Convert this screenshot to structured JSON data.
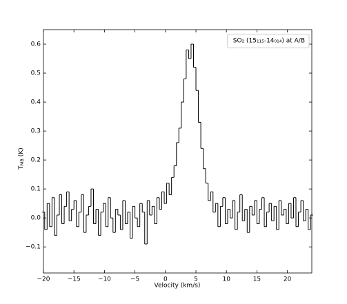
{
  "chart_data": {
    "type": "step",
    "x_label": "Velocity (km/s)",
    "y_label": "T",
    "y_label_sub": "MB",
    "y_label_unit": "(K)",
    "xlim": [
      -20,
      24
    ],
    "ylim": [
      -0.19,
      0.65
    ],
    "xticks": [
      {
        "value": -20,
        "label": "−20"
      },
      {
        "value": -15,
        "label": "−15"
      },
      {
        "value": -10,
        "label": "−10"
      },
      {
        "value": -5,
        "label": "−5"
      },
      0,
      5,
      10,
      15,
      20
    ],
    "yticks": [
      {
        "value": -0.1,
        "label": "−0.1"
      },
      {
        "value": 0,
        "label": "0.0"
      },
      0.1,
      0.2,
      0.3,
      0.4,
      0.5,
      0.6
    ],
    "legend": "upper right",
    "x": [
      -20.0,
      -19.6,
      -19.2,
      -18.8,
      -18.4,
      -18.0,
      -17.6,
      -17.2,
      -16.8,
      -16.4,
      -16.0,
      -15.6,
      -15.2,
      -14.8,
      -14.4,
      -14.0,
      -13.6,
      -13.2,
      -12.8,
      -12.4,
      -12.0,
      -11.6,
      -11.2,
      -10.8,
      -10.4,
      -10.0,
      -9.6,
      -9.2,
      -8.8,
      -8.4,
      -8.0,
      -7.6,
      -7.2,
      -6.8,
      -6.4,
      -6.0,
      -5.6,
      -5.2,
      -4.8,
      -4.4,
      -4.0,
      -3.6,
      -3.2,
      -2.8,
      -2.4,
      -2.0,
      -1.6,
      -1.2,
      -0.8,
      -0.4,
      0.0,
      0.4,
      0.8,
      1.2,
      1.6,
      2.0,
      2.4,
      2.8,
      3.2,
      3.6,
      4.0,
      4.4,
      4.8,
      5.2,
      5.6,
      6.0,
      6.4,
      6.8,
      7.2,
      7.6,
      8.0,
      8.4,
      8.8,
      9.2,
      9.6,
      10.0,
      10.4,
      10.8,
      11.2,
      11.6,
      12.0,
      12.4,
      12.8,
      13.2,
      13.6,
      14.0,
      14.4,
      14.8,
      15.2,
      15.6,
      16.0,
      16.4,
      16.8,
      17.2,
      17.6,
      18.0,
      18.4,
      18.8,
      19.2,
      19.6,
      20.0,
      20.4,
      20.8,
      21.2,
      21.6,
      22.0,
      22.4,
      22.8,
      23.2,
      23.6,
      24.0
    ],
    "series": [
      {
        "name": "SO₂ (15₁₁₅-14₀₁₄) at A/B",
        "color": "#000000",
        "values": [
          0.02,
          -0.04,
          0.05,
          -0.03,
          0.07,
          -0.06,
          0.01,
          0.08,
          -0.02,
          0.04,
          0.09,
          -0.01,
          0.03,
          0.06,
          -0.03,
          0.02,
          0.08,
          -0.05,
          0.01,
          0.04,
          0.1,
          -0.02,
          0.03,
          -0.06,
          0.02,
          0.05,
          -0.03,
          0.07,
          0.0,
          -0.05,
          0.03,
          0.01,
          -0.04,
          0.06,
          -0.02,
          0.02,
          -0.07,
          0.04,
          0.0,
          -0.03,
          0.05,
          0.02,
          -0.09,
          0.06,
          0.01,
          0.04,
          -0.02,
          0.07,
          0.03,
          0.09,
          0.05,
          0.12,
          0.08,
          0.14,
          0.18,
          0.26,
          0.31,
          0.4,
          0.48,
          0.58,
          0.55,
          0.6,
          0.52,
          0.44,
          0.33,
          0.24,
          0.17,
          0.12,
          0.06,
          0.09,
          0.02,
          0.05,
          -0.03,
          0.04,
          0.07,
          -0.02,
          0.03,
          0.0,
          0.06,
          -0.04,
          0.02,
          0.08,
          -0.01,
          0.03,
          -0.05,
          0.04,
          0.01,
          0.06,
          -0.02,
          0.03,
          0.07,
          -0.03,
          0.02,
          0.05,
          -0.01,
          0.04,
          -0.04,
          0.06,
          0.01,
          0.03,
          -0.02,
          0.05,
          0.0,
          0.07,
          -0.03,
          0.02,
          0.06,
          -0.01,
          0.03,
          -0.04,
          0.01
        ]
      }
    ]
  }
}
